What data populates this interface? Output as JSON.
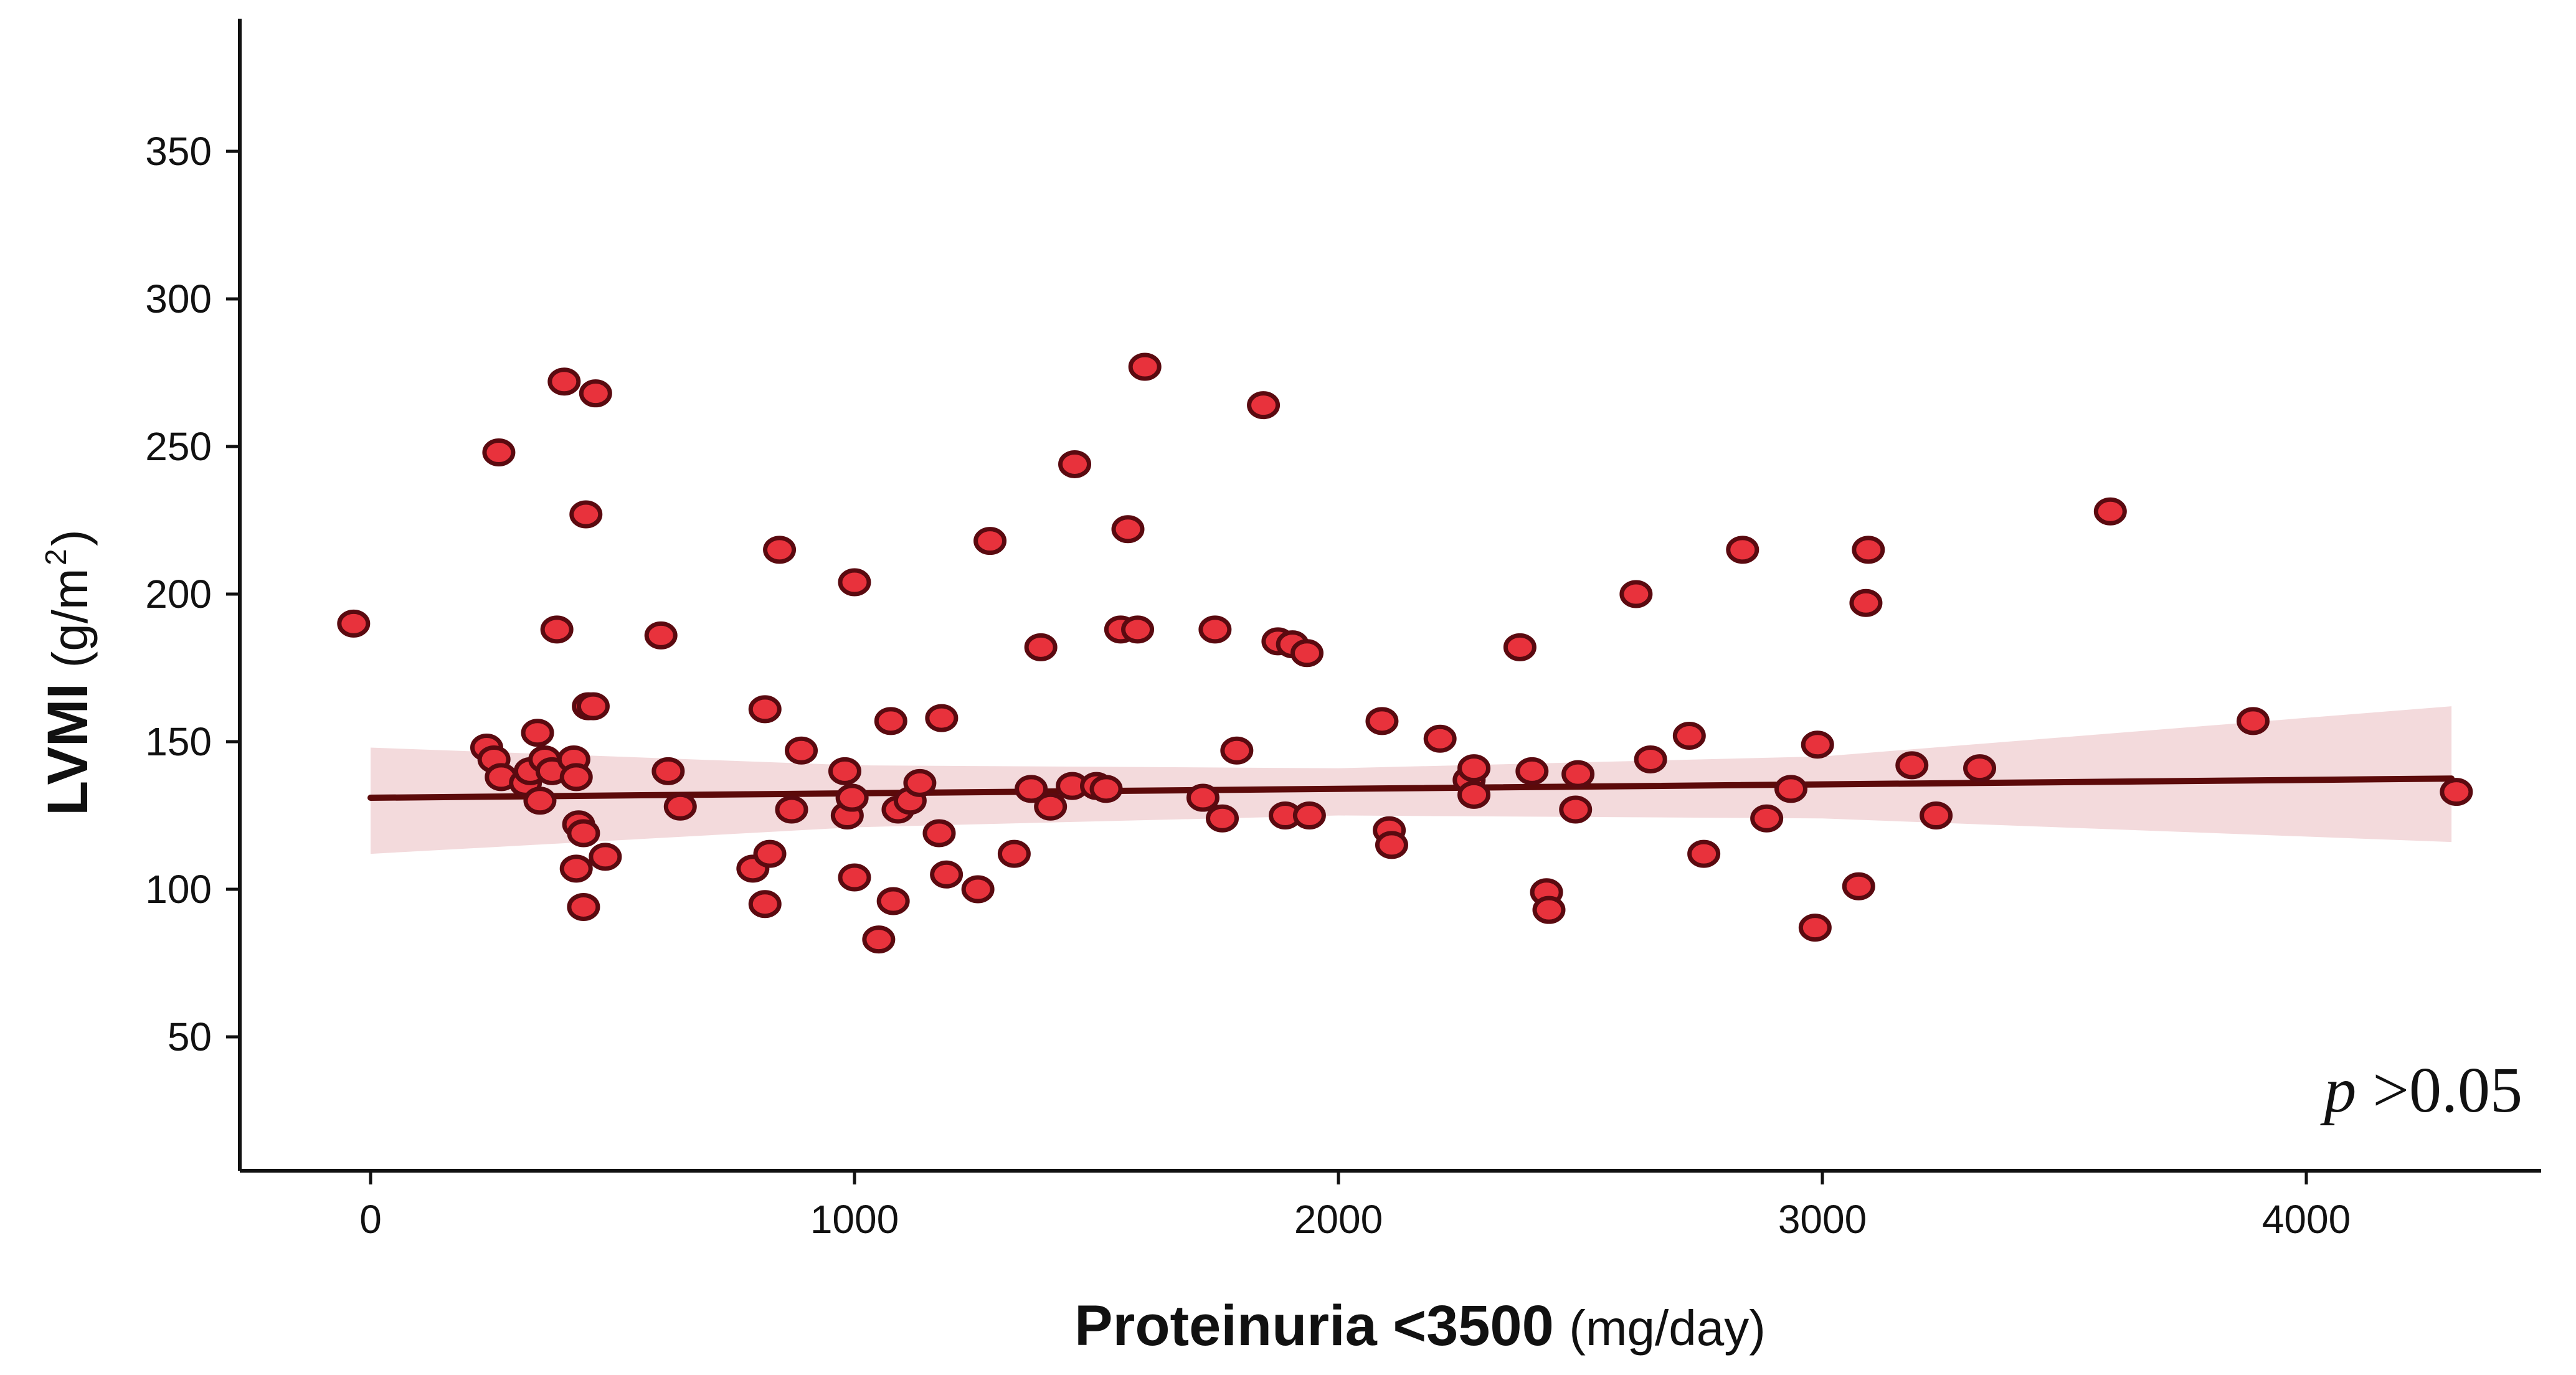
{
  "chart_data": {
    "type": "scatter",
    "xlabel": "Proteinuria <3500",
    "xlabel_unit": "(mg/day)",
    "ylabel": "LVMI",
    "ylabel_unit": "(g/m",
    "ylabel_sup": "2",
    "ylabel_close": ")",
    "xlim": [
      -270,
      4620
    ],
    "ylim": [
      29,
      373
    ],
    "x_ticks": [
      0,
      1000,
      2000,
      3000,
      4000
    ],
    "y_ticks": [
      50,
      100,
      150,
      200,
      250,
      300,
      350
    ],
    "y_tick_labels": [
      "50",
      "100",
      "150",
      "200",
      "250",
      "300",
      "350"
    ],
    "grid": false,
    "annotation": {
      "italic": "p",
      "text": " >0.05",
      "placement": "bottom-right"
    },
    "colors": {
      "point_fill": "#e8323c",
      "point_edge": "#5a0a10",
      "fit_line": "#5c0a0a",
      "band": "#f1d3d6"
    },
    "fit": {
      "x": [
        0,
        4300
      ],
      "y": [
        131,
        137.5
      ]
    },
    "band": {
      "upper": [
        148,
        142,
        141,
        145,
        162
      ],
      "lower": [
        112,
        121,
        125,
        124,
        116
      ],
      "x": [
        0,
        1000,
        2000,
        3000,
        4300
      ]
    },
    "points": [
      [
        -35,
        190
      ],
      [
        240,
        148
      ],
      [
        255,
        144
      ],
      [
        270,
        138
      ],
      [
        265,
        248
      ],
      [
        320,
        136
      ],
      [
        330,
        140
      ],
      [
        350,
        130
      ],
      [
        345,
        153
      ],
      [
        360,
        144
      ],
      [
        375,
        140
      ],
      [
        385,
        188
      ],
      [
        400,
        272
      ],
      [
        420,
        144
      ],
      [
        425,
        138
      ],
      [
        425,
        107
      ],
      [
        430,
        122
      ],
      [
        440,
        119
      ],
      [
        440,
        94
      ],
      [
        445,
        227
      ],
      [
        450,
        162
      ],
      [
        460,
        162
      ],
      [
        465,
        268
      ],
      [
        485,
        111
      ],
      [
        600,
        186
      ],
      [
        615,
        140
      ],
      [
        640,
        128
      ],
      [
        790,
        107
      ],
      [
        815,
        161
      ],
      [
        815,
        95
      ],
      [
        825,
        112
      ],
      [
        845,
        215
      ],
      [
        870,
        127
      ],
      [
        890,
        147
      ],
      [
        980,
        140
      ],
      [
        985,
        125
      ],
      [
        995,
        131
      ],
      [
        1000,
        104
      ],
      [
        1000,
        204
      ],
      [
        1050,
        83
      ],
      [
        1075,
        157
      ],
      [
        1080,
        96
      ],
      [
        1090,
        127
      ],
      [
        1115,
        130
      ],
      [
        1135,
        136
      ],
      [
        1175,
        119
      ],
      [
        1180,
        158
      ],
      [
        1190,
        105
      ],
      [
        1255,
        100
      ],
      [
        1280,
        218
      ],
      [
        1330,
        112
      ],
      [
        1365,
        134
      ],
      [
        1385,
        182
      ],
      [
        1405,
        128
      ],
      [
        1450,
        135
      ],
      [
        1455,
        244
      ],
      [
        1500,
        135
      ],
      [
        1520,
        134
      ],
      [
        1550,
        188
      ],
      [
        1565,
        222
      ],
      [
        1585,
        188
      ],
      [
        1600,
        277
      ],
      [
        1720,
        131
      ],
      [
        1745,
        188
      ],
      [
        1760,
        124
      ],
      [
        1790,
        147
      ],
      [
        1845,
        264
      ],
      [
        1875,
        184
      ],
      [
        1890,
        125
      ],
      [
        1905,
        183
      ],
      [
        1935,
        180
      ],
      [
        1940,
        125
      ],
      [
        2090,
        157
      ],
      [
        2105,
        120
      ],
      [
        2110,
        115
      ],
      [
        2210,
        151
      ],
      [
        2270,
        137
      ],
      [
        2280,
        141
      ],
      [
        2280,
        132
      ],
      [
        2375,
        182
      ],
      [
        2400,
        140
      ],
      [
        2430,
        99
      ],
      [
        2435,
        93
      ],
      [
        2490,
        127
      ],
      [
        2495,
        139
      ],
      [
        2615,
        200
      ],
      [
        2645,
        144
      ],
      [
        2725,
        152
      ],
      [
        2755,
        112
      ],
      [
        2835,
        215
      ],
      [
        2885,
        124
      ],
      [
        2935,
        134
      ],
      [
        2985,
        87
      ],
      [
        2990,
        149
      ],
      [
        3075,
        101
      ],
      [
        3090,
        197
      ],
      [
        3095,
        215
      ],
      [
        3185,
        142
      ],
      [
        3235,
        125
      ],
      [
        3325,
        141
      ],
      [
        3595,
        228
      ],
      [
        3890,
        157
      ],
      [
        4310,
        133
      ]
    ]
  }
}
